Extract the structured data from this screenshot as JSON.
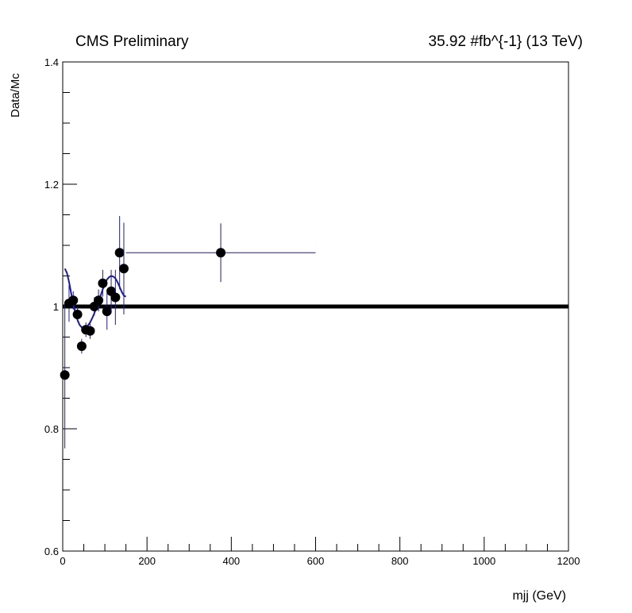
{
  "chart_data": {
    "type": "scatter",
    "title_left": "CMS Preliminary",
    "title_right": "35.92 #fb^{-1} (13 TeV)",
    "xlabel": "mjj (GeV)",
    "ylabel": "Data/Mc",
    "xlim": [
      0,
      1200
    ],
    "ylim": [
      0.6,
      1.4
    ],
    "xticks": [
      "0",
      "200",
      "400",
      "600",
      "800",
      "1000",
      "1200"
    ],
    "yticks": [
      "0.6",
      "0.8",
      "1",
      "1.2",
      "1.4"
    ],
    "reference_line": 1.0,
    "points": [
      {
        "x": 5,
        "y": 0.888,
        "xerr": 5,
        "yerr": 0.12
      },
      {
        "x": 15,
        "y": 1.005,
        "xerr": 5,
        "yerr": 0.03
      },
      {
        "x": 25,
        "y": 1.01,
        "xerr": 5,
        "yerr": 0.015
      },
      {
        "x": 35,
        "y": 0.987,
        "xerr": 5,
        "yerr": 0.012
      },
      {
        "x": 45,
        "y": 0.935,
        "xerr": 5,
        "yerr": 0.012
      },
      {
        "x": 55,
        "y": 0.962,
        "xerr": 5,
        "yerr": 0.012
      },
      {
        "x": 65,
        "y": 0.96,
        "xerr": 5,
        "yerr": 0.013
      },
      {
        "x": 75,
        "y": 1.0,
        "xerr": 5,
        "yerr": 0.015
      },
      {
        "x": 85,
        "y": 1.01,
        "xerr": 5,
        "yerr": 0.018
      },
      {
        "x": 95,
        "y": 1.038,
        "xerr": 5,
        "yerr": 0.022
      },
      {
        "x": 105,
        "y": 0.992,
        "xerr": 5,
        "yerr": 0.03
      },
      {
        "x": 115,
        "y": 1.025,
        "xerr": 5,
        "yerr": 0.035
      },
      {
        "x": 125,
        "y": 1.015,
        "xerr": 5,
        "yerr": 0.045
      },
      {
        "x": 135,
        "y": 1.088,
        "xerr": 5,
        "yerr": 0.06
      },
      {
        "x": 145,
        "y": 1.062,
        "xerr": 5,
        "yerr": 0.075
      },
      {
        "x": 375,
        "y": 1.088,
        "xerr": 225,
        "yerr": 0.048
      }
    ],
    "fit_curve": {
      "color": "#1a1aaa",
      "x": [
        5,
        10,
        15,
        20,
        25,
        30,
        35,
        40,
        45,
        50,
        55,
        60,
        65,
        70,
        75,
        80,
        85,
        90,
        95,
        100,
        105,
        110,
        115,
        120,
        125,
        130,
        135,
        140,
        145,
        150
      ],
      "y": [
        1.062,
        1.055,
        1.04,
        1.022,
        1.005,
        0.99,
        0.978,
        0.97,
        0.966,
        0.965,
        0.966,
        0.969,
        0.974,
        0.981,
        0.989,
        0.998,
        1.008,
        1.018,
        1.028,
        1.037,
        1.044,
        1.048,
        1.05,
        1.049,
        1.046,
        1.04,
        1.032,
        1.024,
        1.018,
        1.016
      ]
    }
  }
}
